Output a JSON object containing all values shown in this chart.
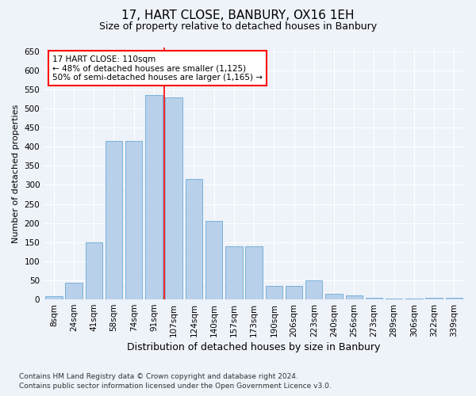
{
  "title": "17, HART CLOSE, BANBURY, OX16 1EH",
  "subtitle": "Size of property relative to detached houses in Banbury",
  "xlabel": "Distribution of detached houses by size in Banbury",
  "ylabel": "Number of detached properties",
  "categories": [
    "8sqm",
    "24sqm",
    "41sqm",
    "58sqm",
    "74sqm",
    "91sqm",
    "107sqm",
    "124sqm",
    "140sqm",
    "157sqm",
    "173sqm",
    "190sqm",
    "206sqm",
    "223sqm",
    "240sqm",
    "256sqm",
    "273sqm",
    "289sqm",
    "306sqm",
    "322sqm",
    "339sqm"
  ],
  "values": [
    8,
    44,
    150,
    415,
    415,
    535,
    530,
    315,
    205,
    140,
    140,
    35,
    35,
    50,
    15,
    10,
    5,
    2,
    2,
    5,
    5
  ],
  "bar_color": "#b8d0ea",
  "bar_edge_color": "#6aaad4",
  "vline_color": "red",
  "vline_x": 5.5,
  "annotation_text": "17 HART CLOSE: 110sqm\n← 48% of detached houses are smaller (1,125)\n50% of semi-detached houses are larger (1,165) →",
  "annotation_box_color": "white",
  "annotation_box_edge_color": "red",
  "ylim": [
    0,
    660
  ],
  "yticks": [
    0,
    50,
    100,
    150,
    200,
    250,
    300,
    350,
    400,
    450,
    500,
    550,
    600,
    650
  ],
  "footer1": "Contains HM Land Registry data © Crown copyright and database right 2024.",
  "footer2": "Contains public sector information licensed under the Open Government Licence v3.0.",
  "background_color": "#eef2f9",
  "grid_color": "#ffffff",
  "title_fontsize": 11,
  "subtitle_fontsize": 9,
  "ylabel_fontsize": 8,
  "xlabel_fontsize": 9,
  "tick_fontsize": 7.5,
  "ytick_fontsize": 7.5,
  "annotation_fontsize": 7.5,
  "footer_fontsize": 6.5
}
